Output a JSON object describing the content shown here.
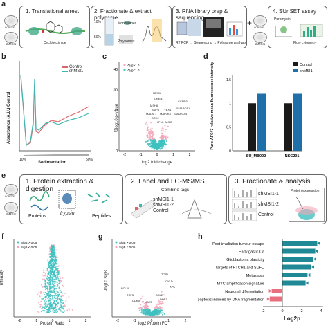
{
  "panel_labels": {
    "a": "a",
    "b": "b",
    "c": "c",
    "d": "d",
    "e": "e",
    "f": "f",
    "g": "g",
    "h": "h"
  },
  "panel_a": {
    "dish_top": "control",
    "dish_bottom": "shMSI1",
    "dish_right_top": "control",
    "dish_right_bottom": "shMSI1",
    "step1": "1. Translational arrest",
    "step1_drug": "Cycloheximide",
    "step2": "2. Fractionate & extract polysome",
    "step2_mono": "Monosomes",
    "step2_poly": "Polysomes",
    "step2_pct_top": "10%",
    "step2_pct_bottom": "50%",
    "step3": "3. RNA library prep & sequencing",
    "step3_flow": "RT PCR → Sequencing → Polysome analysis",
    "step4": "4. SUnSET assay",
    "step4_drug": "Puromycin",
    "step4_flow": "Flow cytometry",
    "plus": "+"
  },
  "panel_b": {
    "ylabel": "Absorbance (A.U.) Control",
    "xlabel": "Sedimentation",
    "x_left": "10%",
    "x_right": "50%",
    "legend": [
      "Control",
      "shMSI1"
    ],
    "colors": {
      "control": "#d9676c",
      "shmsi1": "#3fb7b0"
    }
  },
  "panel_c": {
    "xlabel": "log2 fold change",
    "ylabel": "-log10 p-value",
    "legend": [
      "Δ(q)>1.0",
      "Δ(q)<1.0"
    ],
    "genes": [
      "NPM1",
      "CREB1",
      "MSH6",
      "BMP4",
      "MALAT1",
      "SOX2",
      "MAP3K3",
      "YBX1",
      "HIF1A",
      "MSI2",
      "CCND3",
      "SMARCE1",
      "SMARCA4"
    ],
    "x_ticks": [
      "-2",
      "-1",
      "0",
      "1",
      "2"
    ],
    "y_ticks": [
      "0",
      "10",
      "20",
      "30",
      "40"
    ],
    "colors": {
      "sig": "#f2a7b8",
      "ns": "#3fc1c0"
    }
  },
  "panel_d": {
    "ylabel": "Puro-AF647 relative mean fluorescence intensity",
    "categories": [
      "SU_MB002",
      "NSC201"
    ],
    "legend": [
      "Control",
      "shMSI1"
    ],
    "colors": {
      "control": "#1a1a1a",
      "shmsi1": "#1f6fa8"
    }
  },
  "panel_e": {
    "step1": "1. Protein extraction & digestion",
    "step1_proteins": "Proteins",
    "step1_enzyme": "trypsin",
    "step1_peptides": "Peptides",
    "step2": "2. Label and LC-MS/MS",
    "step2_combine": "Combine tags",
    "tags": [
      "shMSI1-1",
      "shMSI1-2",
      "Control"
    ],
    "step3": "3. Fractionate & analysis",
    "step3_labels": [
      "shMSI1-1",
      "shMSI1-2",
      "Control"
    ],
    "step3_expr": "Protein expression",
    "dish_top": "control",
    "dish_bottom": "shMSI1"
  },
  "panel_f": {
    "xlabel": "Protein Ratio",
    "ylabel": "Intensity",
    "legend": [
      "SigB > 0.05",
      "SigB < 0.05"
    ],
    "x_ticks": [
      "-2",
      "-1",
      "0",
      "1",
      "2"
    ]
  },
  "panel_g": {
    "xlabel": "log2 Protein FC",
    "ylabel": "-log10 SigB",
    "legend": [
      "SigB > 0.05",
      "SigB < 0.05"
    ],
    "genes": [
      "TOP1",
      "CYLD",
      "XPC",
      "BCL6L",
      "TCF3",
      "CDK6",
      "BCL2",
      "DDX3",
      "UBE3"
    ],
    "x_ticks": [
      "-2",
      "-1",
      "0",
      "1",
      "2"
    ]
  },
  "chart_data": [
    {
      "type": "bar",
      "title": "",
      "ylabel": "Puro-AF647 relative mean fluorescence intensity",
      "categories": [
        "SU_MB002",
        "NSC201"
      ],
      "series": [
        {
          "name": "Control",
          "values": [
            1.0,
            1.0
          ]
        },
        {
          "name": "shMSI1",
          "values": [
            1.2,
            1.2
          ]
        }
      ],
      "ylim": [
        0,
        1.6
      ],
      "legend": "top-right"
    },
    {
      "type": "bar",
      "title": "",
      "xlabel": "Log2p",
      "categories": [
        "Post-irradiation tumour escape",
        "Early gastic Ca",
        "Glioblastoma plasticity",
        "Targets of PTCH1 and SUFU",
        "Metastasis",
        "MYC amplification signature",
        "Neuronal differentiation",
        "Apoptosis induced by DNA fragmentation"
      ],
      "values": [
        3.6,
        3.4,
        3.2,
        3.0,
        2.6,
        2.4,
        -1.1,
        -1.3
      ],
      "x_ticks": [
        "-2",
        "0",
        "2",
        "4"
      ],
      "xlim": [
        -2,
        4.2
      ],
      "colors": {
        "up": "#1f8a96",
        "down": "#e8707f"
      }
    }
  ]
}
